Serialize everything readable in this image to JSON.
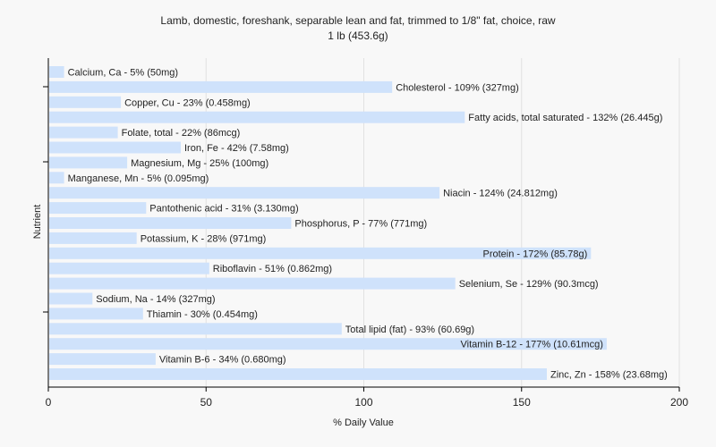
{
  "chart_data": {
    "type": "bar",
    "orientation": "horizontal",
    "title": "Lamb, domestic, foreshank, separable lean and fat, trimmed to 1/8\" fat, choice, raw",
    "subtitle": "1 lb (453.6g)",
    "xlabel": "% Daily Value",
    "ylabel": "Nutrient",
    "xlim": [
      0,
      200
    ],
    "xticks": [
      0,
      50,
      100,
      150,
      200
    ],
    "grid": true,
    "bar_color": "#cfe2fb",
    "categories": [
      "Calcium, Ca",
      "Cholesterol",
      "Copper, Cu",
      "Fatty acids, total saturated",
      "Folate, total",
      "Iron, Fe",
      "Magnesium, Mg",
      "Manganese, Mn",
      "Niacin",
      "Pantothenic acid",
      "Phosphorus, P",
      "Potassium, K",
      "Protein",
      "Riboflavin",
      "Selenium, Se",
      "Sodium, Na",
      "Thiamin",
      "Total lipid (fat)",
      "Vitamin B-12",
      "Vitamin B-6",
      "Zinc, Zn"
    ],
    "values": [
      5,
      109,
      23,
      132,
      22,
      42,
      25,
      5,
      124,
      31,
      77,
      28,
      172,
      51,
      129,
      14,
      30,
      93,
      177,
      34,
      158
    ],
    "labels": [
      "Calcium, Ca - 5% (50mg)",
      "Cholesterol - 109% (327mg)",
      "Copper, Cu - 23% (0.458mg)",
      "Fatty acids, total saturated - 132% (26.445g)",
      "Folate, total - 22% (86mcg)",
      "Iron, Fe - 42% (7.58mg)",
      "Magnesium, Mg - 25% (100mg)",
      "Manganese, Mn - 5% (0.095mg)",
      "Niacin - 124% (24.812mg)",
      "Pantothenic acid - 31% (3.130mg)",
      "Phosphorus, P - 77% (771mg)",
      "Potassium, K - 28% (971mg)",
      "Protein - 172% (85.78g)",
      "Riboflavin - 51% (0.862mg)",
      "Selenium, Se - 129% (90.3mcg)",
      "Sodium, Na - 14% (327mg)",
      "Thiamin - 30% (0.454mg)",
      "Total lipid (fat) - 93% (60.69g)",
      "Vitamin B-12 - 177% (10.61mcg)",
      "Vitamin B-6 - 34% (0.680mg)",
      "Zinc, Zn - 158% (23.68mg)"
    ]
  }
}
